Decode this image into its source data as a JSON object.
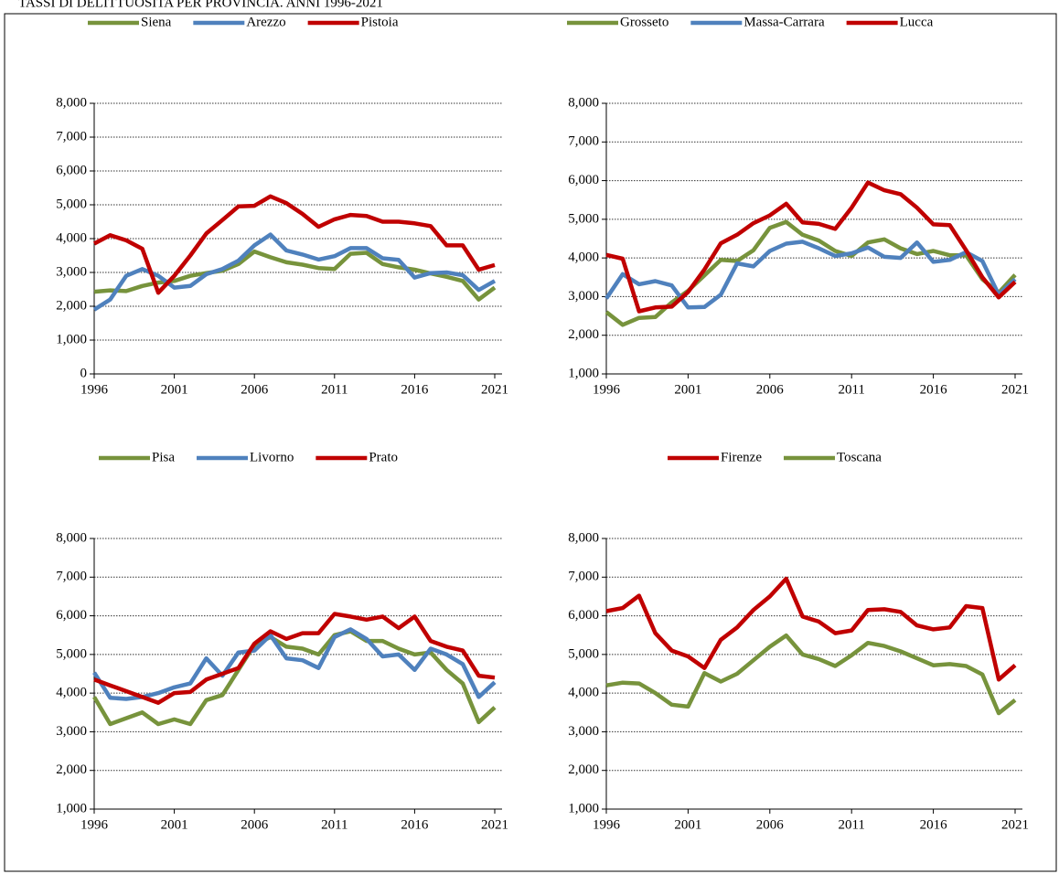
{
  "title": "TASSI DI DELITTUOSITA PER PROVINCIA. ANNI 1996-2021",
  "chart_data": [
    {
      "type": "line",
      "x": [
        1996,
        1997,
        1998,
        1999,
        2000,
        2001,
        2002,
        2003,
        2004,
        2005,
        2006,
        2007,
        2008,
        2009,
        2010,
        2011,
        2012,
        2013,
        2014,
        2015,
        2016,
        2017,
        2018,
        2019,
        2020,
        2021
      ],
      "series": [
        {
          "name": "Siena",
          "color": "#77933c",
          "values": [
            2430,
            2470,
            2450,
            2600,
            2700,
            2750,
            2900,
            2980,
            3050,
            3250,
            3620,
            3450,
            3300,
            3230,
            3130,
            3100,
            3550,
            3580,
            3250,
            3150,
            3080,
            2970,
            2870,
            2750,
            2200,
            2550
          ]
        },
        {
          "name": "Arezzo",
          "color": "#4f81bd",
          "values": [
            1900,
            2200,
            2900,
            3100,
            2900,
            2550,
            2600,
            2950,
            3100,
            3350,
            3800,
            4120,
            3650,
            3530,
            3380,
            3480,
            3720,
            3720,
            3420,
            3370,
            2850,
            2980,
            3000,
            2920,
            2480,
            2750
          ]
        },
        {
          "name": "Pistoia",
          "color": "#c00000",
          "values": [
            3850,
            4100,
            3950,
            3700,
            2400,
            2900,
            3500,
            4150,
            4550,
            4950,
            4970,
            5250,
            5050,
            4730,
            4350,
            4570,
            4700,
            4670,
            4500,
            4500,
            4450,
            4370,
            3800,
            3800,
            3080,
            3220
          ]
        }
      ],
      "xlim": [
        1996,
        2021
      ],
      "xticks": [
        1996,
        2001,
        2006,
        2011,
        2016,
        2021
      ],
      "ylim": [
        0,
        8000
      ],
      "yticks": [
        0,
        {
          "value": 1000,
          "label": "1,000"
        },
        {
          "value": 2000,
          "label": "2,000"
        },
        {
          "value": 3000,
          "label": "3,000"
        },
        {
          "value": 4000,
          "label": "4,000"
        },
        {
          "value": 5000,
          "label": "5,000"
        },
        {
          "value": 6000,
          "label": "6,000"
        },
        {
          "value": 7000,
          "label": "7,000"
        },
        {
          "value": 8000,
          "label": "8,000"
        }
      ],
      "grid": true,
      "legend": "top"
    },
    {
      "type": "line",
      "x": [
        1996,
        1997,
        1998,
        1999,
        2000,
        2001,
        2002,
        2003,
        2004,
        2005,
        2006,
        2007,
        2008,
        2009,
        2010,
        2011,
        2012,
        2013,
        2014,
        2015,
        2016,
        2017,
        2018,
        2019,
        2020,
        2021
      ],
      "series": [
        {
          "name": "Grosseto",
          "color": "#77933c",
          "values": [
            2600,
            2270,
            2450,
            2470,
            2850,
            3150,
            3550,
            3950,
            3920,
            4200,
            4780,
            4930,
            4600,
            4450,
            4180,
            4050,
            4400,
            4480,
            4250,
            4100,
            4180,
            4070,
            4070,
            3450,
            3100,
            3560
          ]
        },
        {
          "name": "Massa-Carrara",
          "color": "#4f81bd",
          "values": [
            2950,
            3580,
            3320,
            3400,
            3290,
            2720,
            2730,
            3050,
            3860,
            3780,
            4180,
            4370,
            4420,
            4250,
            4050,
            4120,
            4270,
            4030,
            4000,
            4400,
            3900,
            3950,
            4150,
            3920,
            3050,
            3450
          ]
        },
        {
          "name": "Lucca",
          "color": "#c00000",
          "values": [
            4080,
            3980,
            2620,
            2720,
            2740,
            3120,
            3700,
            4380,
            4600,
            4900,
            5100,
            5400,
            4920,
            4880,
            4750,
            5300,
            5950,
            5750,
            5650,
            5300,
            4870,
            4850,
            4200,
            3500,
            2980,
            3380
          ]
        }
      ],
      "xlim": [
        1996,
        2021
      ],
      "xticks": [
        1996,
        2001,
        2006,
        2011,
        2016,
        2021
      ],
      "ylim": [
        1000,
        8000
      ],
      "yticks": [
        {
          "value": 1000,
          "label": "1,000"
        },
        {
          "value": 2000,
          "label": "2,000"
        },
        {
          "value": 3000,
          "label": "3,000"
        },
        {
          "value": 4000,
          "label": "4,000"
        },
        {
          "value": 5000,
          "label": "5,000"
        },
        {
          "value": 6000,
          "label": "6,000"
        },
        {
          "value": 7000,
          "label": "7,000"
        },
        {
          "value": 8000,
          "label": "8,000"
        }
      ],
      "grid": true,
      "legend": "top"
    },
    {
      "type": "line",
      "x": [
        1996,
        1997,
        1998,
        1999,
        2000,
        2001,
        2002,
        2003,
        2004,
        2005,
        2006,
        2007,
        2008,
        2009,
        2010,
        2011,
        2012,
        2013,
        2014,
        2015,
        2016,
        2017,
        2018,
        2019,
        2020,
        2021
      ],
      "series": [
        {
          "name": "Pisa",
          "color": "#77933c",
          "values": [
            3900,
            3200,
            3350,
            3500,
            3200,
            3320,
            3200,
            3820,
            3950,
            4600,
            5250,
            5450,
            5200,
            5150,
            5000,
            5500,
            5600,
            5350,
            5350,
            5150,
            5000,
            5050,
            4600,
            4250,
            3250,
            3630
          ]
        },
        {
          "name": "Livorno",
          "color": "#4f81bd",
          "values": [
            4530,
            3880,
            3850,
            3900,
            4000,
            4150,
            4250,
            4900,
            4450,
            5050,
            5100,
            5500,
            4900,
            4850,
            4650,
            5450,
            5650,
            5400,
            4950,
            5000,
            4600,
            5150,
            5000,
            4750,
            3900,
            4280
          ]
        },
        {
          "name": "Prato",
          "color": "#c00000",
          "values": [
            4350,
            4200,
            4050,
            3900,
            3750,
            4000,
            4030,
            4350,
            4500,
            4650,
            5280,
            5600,
            5400,
            5550,
            5550,
            6050,
            5980,
            5900,
            5980,
            5680,
            5980,
            5350,
            5200,
            5100,
            4450,
            4400
          ]
        }
      ],
      "xlim": [
        1996,
        2021
      ],
      "xticks": [
        1996,
        2001,
        2006,
        2011,
        2016,
        2021
      ],
      "ylim": [
        1000,
        8000
      ],
      "yticks": [
        {
          "value": 1000,
          "label": "1,000"
        },
        {
          "value": 2000,
          "label": "2,000"
        },
        {
          "value": 3000,
          "label": "3,000"
        },
        {
          "value": 4000,
          "label": "4,000"
        },
        {
          "value": 5000,
          "label": "5,000"
        },
        {
          "value": 6000,
          "label": "6,000"
        },
        {
          "value": 7000,
          "label": "7,000"
        },
        {
          "value": 8000,
          "label": "8,000"
        }
      ],
      "grid": true,
      "legend": "top"
    },
    {
      "type": "line",
      "x": [
        1996,
        1997,
        1998,
        1999,
        2000,
        2001,
        2002,
        2003,
        2004,
        2005,
        2006,
        2007,
        2008,
        2009,
        2010,
        2011,
        2012,
        2013,
        2014,
        2015,
        2016,
        2017,
        2018,
        2019,
        2020,
        2021
      ],
      "series": [
        {
          "name": "Firenze",
          "color": "#c00000",
          "values": [
            6120,
            6200,
            6520,
            5550,
            5100,
            4950,
            4650,
            5380,
            5700,
            6150,
            6500,
            6960,
            5980,
            5850,
            5550,
            5620,
            6150,
            6170,
            6100,
            5750,
            5650,
            5700,
            6250,
            6200,
            4350,
            4720
          ]
        },
        {
          "name": "Toscana",
          "color": "#77933c",
          "values": [
            4200,
            4270,
            4250,
            4000,
            3700,
            3650,
            4520,
            4300,
            4500,
            4850,
            5200,
            5490,
            5000,
            4880,
            4700,
            4980,
            5300,
            5220,
            5080,
            4900,
            4720,
            4750,
            4700,
            4480,
            3480,
            3820
          ]
        }
      ],
      "xlim": [
        1996,
        2021
      ],
      "xticks": [
        1996,
        2001,
        2006,
        2011,
        2016,
        2021
      ],
      "ylim": [
        1000,
        8000
      ],
      "yticks": [
        {
          "value": 1000,
          "label": "1,000"
        },
        {
          "value": 2000,
          "label": "2,000"
        },
        {
          "value": 3000,
          "label": "3,000"
        },
        {
          "value": 4000,
          "label": "4,000"
        },
        {
          "value": 5000,
          "label": "5,000"
        },
        {
          "value": 6000,
          "label": "6,000"
        },
        {
          "value": 7000,
          "label": "7,000"
        },
        {
          "value": 8000,
          "label": "8,000"
        }
      ],
      "grid": true,
      "legend": "top"
    }
  ]
}
